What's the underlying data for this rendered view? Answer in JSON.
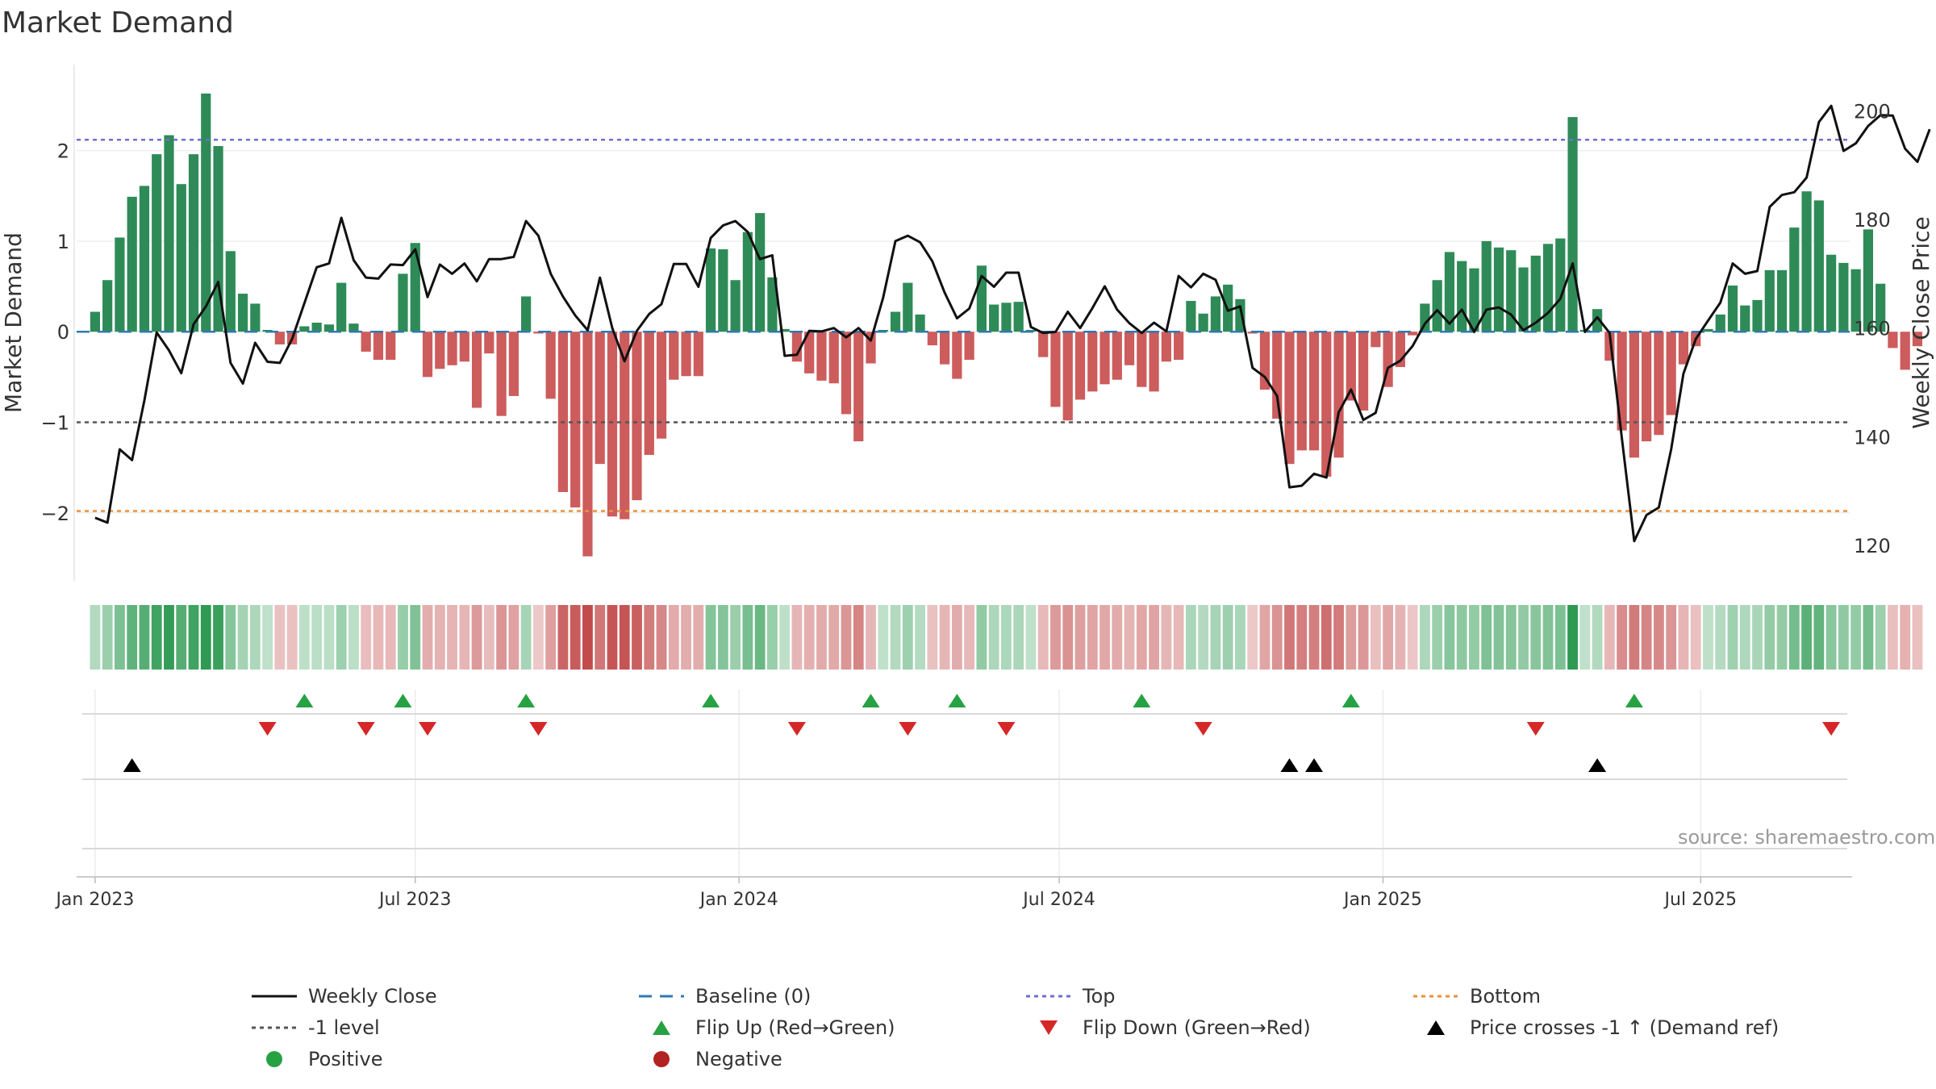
{
  "title": "Market Demand",
  "source": "source: sharemaestro.com",
  "colors": {
    "positive": "#2e8b57",
    "negative": "#cd5c5c",
    "close": "#111111",
    "baseline": "#2f79b5",
    "top": "#6f6fd0",
    "minus1": "#555555",
    "bottom": "#e8913a",
    "flip_up": "#27a243",
    "flip_down": "#d62728",
    "cross": "#000000"
  },
  "chart_data": {
    "type": "bar",
    "title": "Market Demand",
    "ylabel_left": "Market Demand",
    "ylabel_right": "Weekly Close Price",
    "ylim_left": [
      -2.75,
      2.95
    ],
    "yticks_left": [
      {
        "v": 2,
        "label": "2"
      },
      {
        "v": 1,
        "label": "1"
      },
      {
        "v": 0,
        "label": "0"
      },
      {
        "v": -1,
        "label": "−1"
      },
      {
        "v": -2,
        "label": "−2"
      }
    ],
    "ylim_right": [
      113.5,
      208.5
    ],
    "yticks_right": [
      {
        "v": 200,
        "label": "200"
      },
      {
        "v": 180,
        "label": "180"
      },
      {
        "v": 160,
        "label": "160"
      },
      {
        "v": 140,
        "label": "140"
      },
      {
        "v": 120,
        "label": "120"
      }
    ],
    "x_range_weeks": [
      -1.5,
      142.5
    ],
    "x_ticks": [
      {
        "w": 0,
        "label": "Jan 2023"
      },
      {
        "w": 26,
        "label": "Jul 2023"
      },
      {
        "w": 52.3,
        "label": "Jan 2024"
      },
      {
        "w": 78.3,
        "label": "Jul 2024"
      },
      {
        "w": 104.6,
        "label": "Jan 2025"
      },
      {
        "w": 130.4,
        "label": "Jul 2025"
      }
    ],
    "reference_lines": {
      "baseline": 0,
      "top": 2.12,
      "minus1": -1,
      "bottom": -1.98
    },
    "demand": [
      0.22,
      0.57,
      1.04,
      1.49,
      1.61,
      1.96,
      2.17,
      1.63,
      1.96,
      2.63,
      2.05,
      0.89,
      0.42,
      0.31,
      0.02,
      -0.14,
      -0.14,
      0.06,
      0.1,
      0.08,
      0.54,
      0.09,
      -0.22,
      -0.31,
      -0.31,
      0.64,
      0.98,
      -0.5,
      -0.41,
      -0.37,
      -0.33,
      -0.84,
      -0.24,
      -0.93,
      -0.71,
      0.39,
      -0.02,
      -0.74,
      -1.77,
      -1.94,
      -2.48,
      -1.46,
      -2.04,
      -2.07,
      -1.86,
      -1.36,
      -1.18,
      -0.53,
      -0.49,
      -0.49,
      0.92,
      0.91,
      0.57,
      1.1,
      1.31,
      0.6,
      0.03,
      -0.33,
      -0.46,
      -0.54,
      -0.57,
      -0.91,
      -1.21,
      -0.35,
      0.02,
      0.22,
      0.54,
      0.19,
      -0.15,
      -0.36,
      -0.52,
      -0.31,
      0.73,
      0.3,
      0.32,
      0.33,
      0.02,
      -0.28,
      -0.83,
      -0.98,
      -0.75,
      -0.66,
      -0.58,
      -0.53,
      -0.37,
      -0.61,
      -0.66,
      -0.33,
      -0.31,
      0.34,
      0.2,
      0.39,
      0.52,
      0.36,
      -0.02,
      -0.64,
      -0.96,
      -1.46,
      -1.31,
      -1.31,
      -1.6,
      -1.39,
      -0.76,
      -0.87,
      -0.17,
      -0.61,
      -0.39,
      -0.04,
      0.31,
      0.57,
      0.88,
      0.78,
      0.7,
      1.0,
      0.93,
      0.9,
      0.71,
      0.84,
      0.97,
      1.03,
      2.37,
      0.02,
      0.25,
      -0.32,
      -1.09,
      -1.39,
      -1.21,
      -1.14,
      -0.92,
      -0.36,
      -0.16,
      0.03,
      0.19,
      0.51,
      0.29,
      0.35,
      0.68,
      0.68,
      1.15,
      1.55,
      1.45,
      0.85,
      0.76,
      0.69,
      1.13,
      0.53,
      -0.18,
      -0.42,
      -0.16
    ],
    "close": [
      125.1,
      124.2,
      137.7,
      135.7,
      146.7,
      159.2,
      155.9,
      151.7,
      160.7,
      164.0,
      168.5,
      153.6,
      149.8,
      157.3,
      153.8,
      153.6,
      158.0,
      164.6,
      171.2,
      171.9,
      180.3,
      172.5,
      169.3,
      169.1,
      171.7,
      171.6,
      174.5,
      165.7,
      171.7,
      170.0,
      171.9,
      168.6,
      172.7,
      172.7,
      173.1,
      179.7,
      177.0,
      170.0,
      165.8,
      162.3,
      159.6,
      169.3,
      160.0,
      153.9,
      159.5,
      162.6,
      164.4,
      171.8,
      171.8,
      167.6,
      176.6,
      178.9,
      179.7,
      177.7,
      172.7,
      173.4,
      154.9,
      155.1,
      159.5,
      159.4,
      160.0,
      158.3,
      160.0,
      157.7,
      165.6,
      176.0,
      177.0,
      175.8,
      172.3,
      166.5,
      161.8,
      163.6,
      169.6,
      167.6,
      170.2,
      170.2,
      160.2,
      159.1,
      159.3,
      163.0,
      160.0,
      163.7,
      167.7,
      163.4,
      160.9,
      159.1,
      161.0,
      159.4,
      169.6,
      167.5,
      170.0,
      168.9,
      163.2,
      164.0,
      152.7,
      151.0,
      147.5,
      130.7,
      131.0,
      133.2,
      132.5,
      144.5,
      148.7,
      143.1,
      144.4,
      152.7,
      154.0,
      156.7,
      160.8,
      163.3,
      160.8,
      163.4,
      159.3,
      163.4,
      163.8,
      162.5,
      159.6,
      161.0,
      162.8,
      165.4,
      171.9,
      159.3,
      162.0,
      159.1,
      139.7,
      120.8,
      125.6,
      127.0,
      137.7,
      151.6,
      158.0,
      161.4,
      164.7,
      171.9,
      170.0,
      170.5,
      182.3,
      184.5,
      185.0,
      187.7,
      197.9,
      200.9,
      192.6,
      194.0,
      197.2,
      199.2,
      199.1,
      193.0,
      190.6,
      196.6
    ],
    "flip_up_weeks": [
      17,
      25,
      35,
      50,
      63,
      70,
      85,
      102,
      125
    ],
    "flip_down_weeks": [
      14,
      22,
      27,
      36,
      57,
      66,
      74,
      90,
      117,
      141
    ],
    "price_cross_weeks": [
      3,
      97,
      99,
      122
    ],
    "legend": [
      {
        "key": "close",
        "label": "Weekly Close",
        "symbol": "line-solid"
      },
      {
        "key": "baseline",
        "label": "Baseline (0)",
        "symbol": "line-dashed"
      },
      {
        "key": "top",
        "label": "Top",
        "symbol": "line-dotted"
      },
      {
        "key": "bottom",
        "label": "Bottom",
        "symbol": "line-dotted"
      },
      {
        "key": "minus1",
        "label": "-1 level",
        "symbol": "line-dotted"
      },
      {
        "key": "flip_up",
        "label": "Flip Up (Red→Green)",
        "symbol": "tri-up"
      },
      {
        "key": "flip_down",
        "label": "Flip Down (Green→Red)",
        "symbol": "tri-down"
      },
      {
        "key": "cross",
        "label": "Price crosses -1 ↑ (Demand ref)",
        "symbol": "tri-up"
      },
      {
        "key": "positive",
        "label": "Positive",
        "symbol": "dot"
      },
      {
        "key": "negative",
        "label": "Negative",
        "symbol": "dot"
      }
    ]
  }
}
